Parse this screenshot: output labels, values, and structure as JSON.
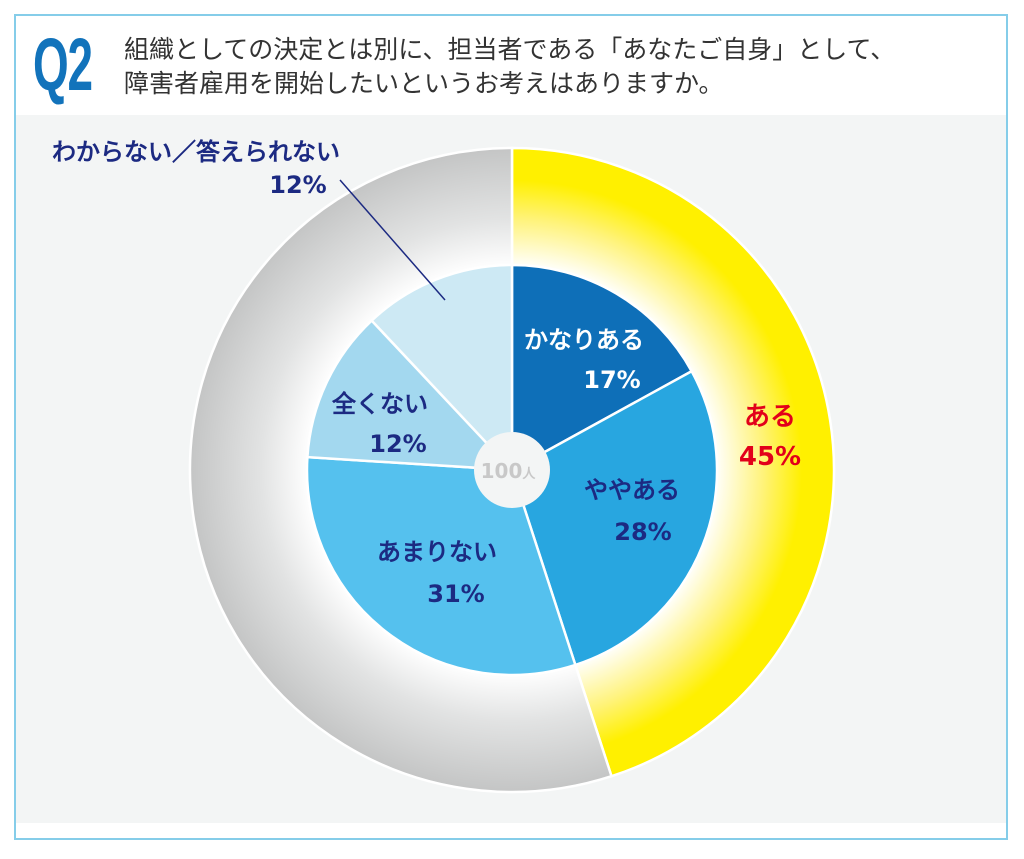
{
  "header": {
    "question_number": "Q2",
    "title_line1": "組織としての決定とは別に、担当者である「あなたご自身」として、",
    "title_line2": "障害者雇用を開始したいというお考えはありますか。"
  },
  "chart_data": {
    "type": "pie",
    "subtype": "nested-donut",
    "center_label": {
      "value": "100",
      "unit": "人"
    },
    "outer_ring": [
      {
        "label": "ある",
        "value": 45,
        "pct_label": "45%",
        "color": "#fff000"
      },
      {
        "label": "",
        "value": 55,
        "color": "#c8c9c9"
      }
    ],
    "inner_ring": [
      {
        "label": "かなりある",
        "value": 17,
        "pct_label": "17%",
        "color": "#0e6fb8"
      },
      {
        "label": "ややある",
        "value": 28,
        "pct_label": "28%",
        "color": "#28a6e0"
      },
      {
        "label": "あまりない",
        "value": 31,
        "pct_label": "31%",
        "color": "#55c1ee"
      },
      {
        "label": "全くない",
        "value": 12,
        "pct_label": "12%",
        "color": "#a3d8ef"
      },
      {
        "label": "わからない／答えられない",
        "value": 12,
        "pct_label": "12%",
        "color": "#cde9f4"
      }
    ],
    "annotation_color": "#1c2a82",
    "highlight_color": "#e2001a"
  }
}
